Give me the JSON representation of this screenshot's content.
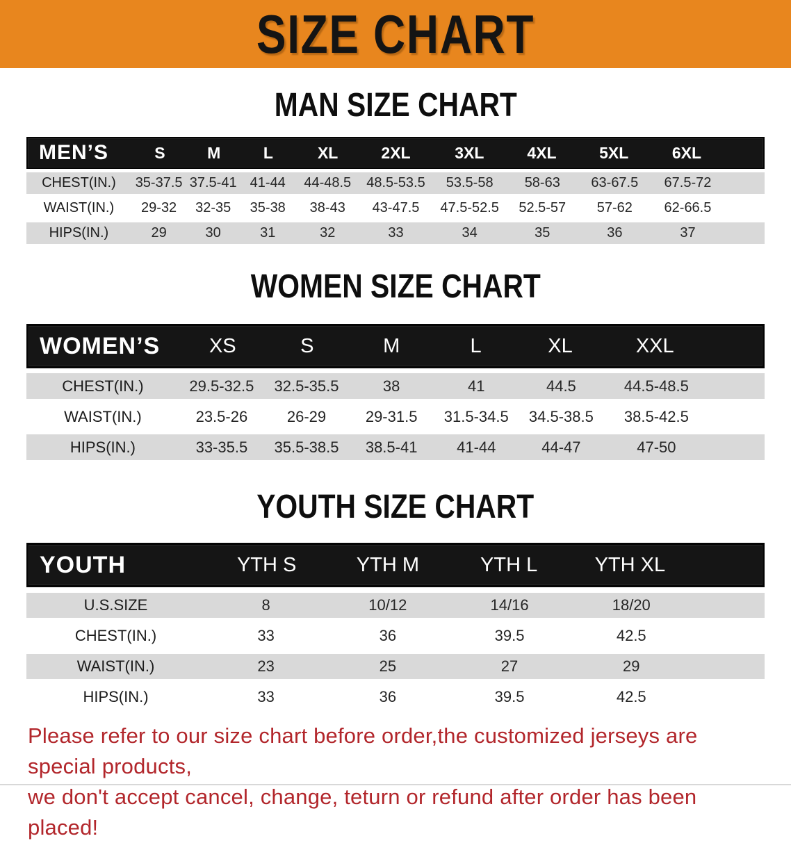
{
  "banner": {
    "title": "SIZE CHART",
    "background_color": "#E8861E",
    "title_color": "#141414"
  },
  "sections": [
    {
      "id": "men",
      "heading": "MAN SIZE CHART",
      "table": {
        "corner_label": "MEN’S",
        "size_columns": [
          "S",
          "M",
          "L",
          "XL",
          "2XL",
          "3XL",
          "4XL",
          "5XL",
          "6XL"
        ],
        "rows": [
          {
            "label": "CHEST(IN.)",
            "values": [
              "35-37.5",
              "37.5-41",
              "41-44",
              "44-48.5",
              "48.5-53.5",
              "53.5-58",
              "58-63",
              "63-67.5",
              "67.5-72"
            ]
          },
          {
            "label": "WAIST(IN.)",
            "values": [
              "29-32",
              "32-35",
              "35-38",
              "38-43",
              "43-47.5",
              "47.5-52.5",
              "52.5-57",
              "57-62",
              "62-66.5"
            ]
          },
          {
            "label": "HIPS(IN.)",
            "values": [
              "29",
              "30",
              "31",
              "32",
              "33",
              "34",
              "35",
              "36",
              "37"
            ]
          }
        ]
      }
    },
    {
      "id": "women",
      "heading": "WOMEN SIZE CHART",
      "table": {
        "corner_label": "WOMEN’S",
        "size_columns": [
          "XS",
          "S",
          "M",
          "L",
          "XL",
          "XXL"
        ],
        "rows": [
          {
            "label": "CHEST(IN.)",
            "values": [
              "29.5-32.5",
              "32.5-35.5",
              "38",
              "41",
              "44.5",
              "44.5-48.5"
            ]
          },
          {
            "label": "WAIST(IN.)",
            "values": [
              "23.5-26",
              "26-29",
              "29-31.5",
              "31.5-34.5",
              "34.5-38.5",
              "38.5-42.5"
            ]
          },
          {
            "label": "HIPS(IN.)",
            "values": [
              "33-35.5",
              "35.5-38.5",
              "38.5-41",
              "41-44",
              "44-47",
              "47-50"
            ]
          }
        ]
      }
    },
    {
      "id": "youth",
      "heading": "YOUTH SIZE CHART",
      "table": {
        "corner_label": "YOUTH",
        "size_columns": [
          "YTH S",
          "YTH M",
          "YTH L",
          "YTH XL"
        ],
        "rows": [
          {
            "label": "U.S.SIZE",
            "values": [
              "8",
              "10/12",
              "14/16",
              "18/20"
            ]
          },
          {
            "label": "CHEST(IN.)",
            "values": [
              "33",
              "36",
              "39.5",
              "42.5"
            ]
          },
          {
            "label": "WAIST(IN.)",
            "values": [
              "23",
              "25",
              "27",
              "29"
            ]
          },
          {
            "label": "HIPS(IN.)",
            "values": [
              "33",
              "36",
              "39.5",
              "42.5"
            ]
          }
        ]
      }
    }
  ],
  "footer": {
    "line1": "Please refer to our size chart before order,the customized jerseys are special products,",
    "line2": "we don't accept cancel, change, teturn or refund after order has been placed!",
    "text_color": "#B2262B"
  }
}
